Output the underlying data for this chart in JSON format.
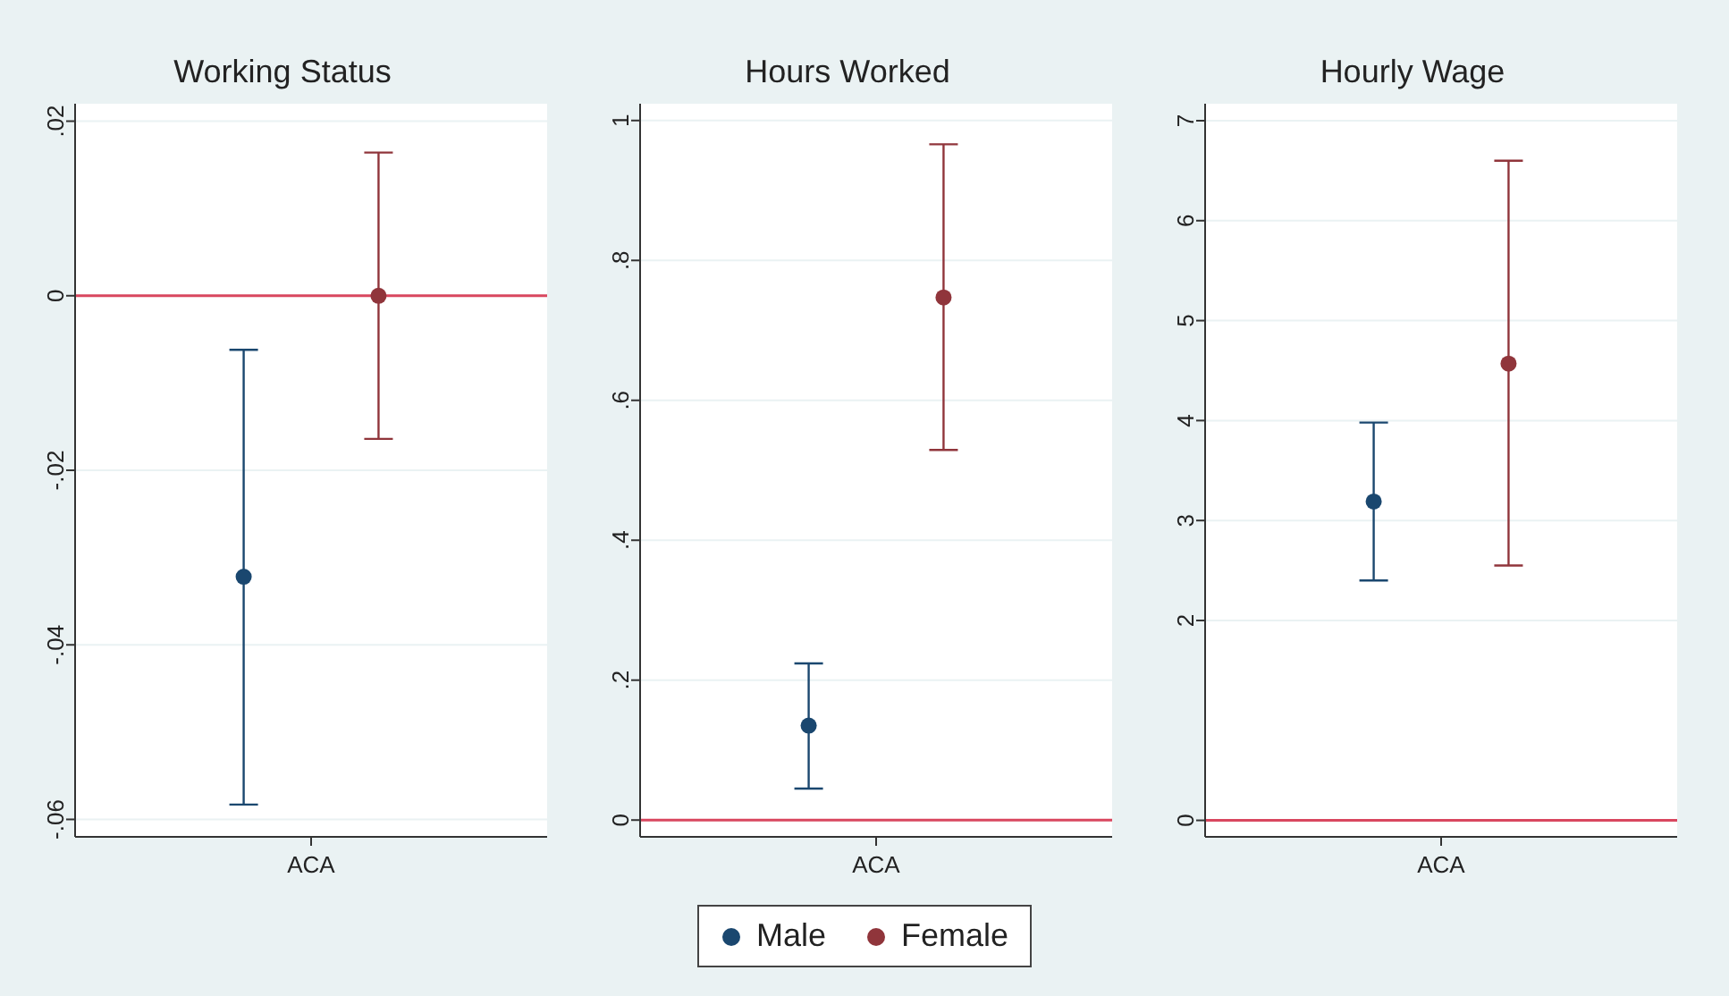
{
  "chart_data": [
    {
      "type": "scatter",
      "title": "Working Status",
      "categories": [
        null,
        null,
        null,
        "ACA",
        null,
        null,
        null
      ],
      "marker": "circle",
      "grid": "y",
      "ylim": [
        -0.062,
        0.022
      ],
      "yticks": [
        {
          "value": -0.06,
          "label": "-.06"
        },
        {
          "value": -0.04,
          "label": "-.04"
        },
        {
          "value": -0.02,
          "label": "-.02"
        },
        0,
        {
          "value": 0.02,
          "label": ".02"
        }
      ],
      "ref_lines": [
        {
          "axis": "y",
          "value": 0,
          "color": "#d9475f"
        }
      ],
      "series": [
        {
          "color": "#1a476f",
          "values": [
            null,
            null,
            -0.0322,
            null,
            null,
            null,
            null
          ],
          "errors": [
            null,
            null,
            [
              -0.0583,
              -0.0062
            ],
            null,
            null,
            null,
            null
          ]
        },
        {
          "color": "#90353b",
          "values": [
            null,
            null,
            null,
            null,
            0,
            null,
            null
          ],
          "errors": [
            null,
            null,
            null,
            null,
            [
              -0.0164,
              0.0164
            ],
            null,
            null
          ]
        }
      ]
    },
    {
      "type": "scatter",
      "title": "Hours Worked",
      "categories": [
        null,
        null,
        null,
        "ACA",
        null,
        null,
        null
      ],
      "marker": "circle",
      "grid": "y",
      "legend": "bottom",
      "ylim": [
        -0.024,
        1.024
      ],
      "yticks": [
        0,
        {
          "value": 0.2,
          "label": ".2"
        },
        {
          "value": 0.4,
          "label": ".4"
        },
        {
          "value": 0.6,
          "label": ".6"
        },
        {
          "value": 0.8,
          "label": ".8"
        },
        1
      ],
      "ref_lines": [
        {
          "axis": "y",
          "value": 0,
          "color": "#d9475f"
        }
      ],
      "series": [
        {
          "name": "Male",
          "color": "#1a476f",
          "values": [
            null,
            null,
            0.135,
            null,
            null,
            null,
            null
          ],
          "errors": [
            null,
            null,
            [
              0.045,
              0.224
            ],
            null,
            null,
            null,
            null
          ]
        },
        {
          "name": "Female",
          "color": "#90353b",
          "values": [
            null,
            null,
            null,
            null,
            0.747,
            null,
            null
          ],
          "errors": [
            null,
            null,
            null,
            null,
            [
              0.529,
              0.966
            ],
            null,
            null
          ]
        }
      ]
    },
    {
      "type": "scatter",
      "title": "Hourly Wage",
      "categories": [
        null,
        null,
        null,
        "ACA",
        null,
        null,
        null
      ],
      "marker": "circle",
      "grid": "y",
      "ylim": [
        -0.165,
        7.17
      ],
      "yticks": [
        0,
        2,
        3,
        4,
        5,
        6,
        7
      ],
      "ref_lines": [
        {
          "axis": "y",
          "value": 0,
          "color": "#d9475f"
        }
      ],
      "series": [
        {
          "color": "#1a476f",
          "values": [
            null,
            null,
            3.19,
            null,
            null,
            null,
            null
          ],
          "errors": [
            null,
            null,
            [
              2.4,
              3.98
            ],
            null,
            null,
            null,
            null
          ]
        },
        {
          "color": "#90353b",
          "values": [
            null,
            null,
            null,
            null,
            4.57,
            null,
            null
          ],
          "errors": [
            null,
            null,
            null,
            null,
            [
              2.55,
              6.6
            ],
            null,
            null
          ]
        }
      ]
    }
  ]
}
